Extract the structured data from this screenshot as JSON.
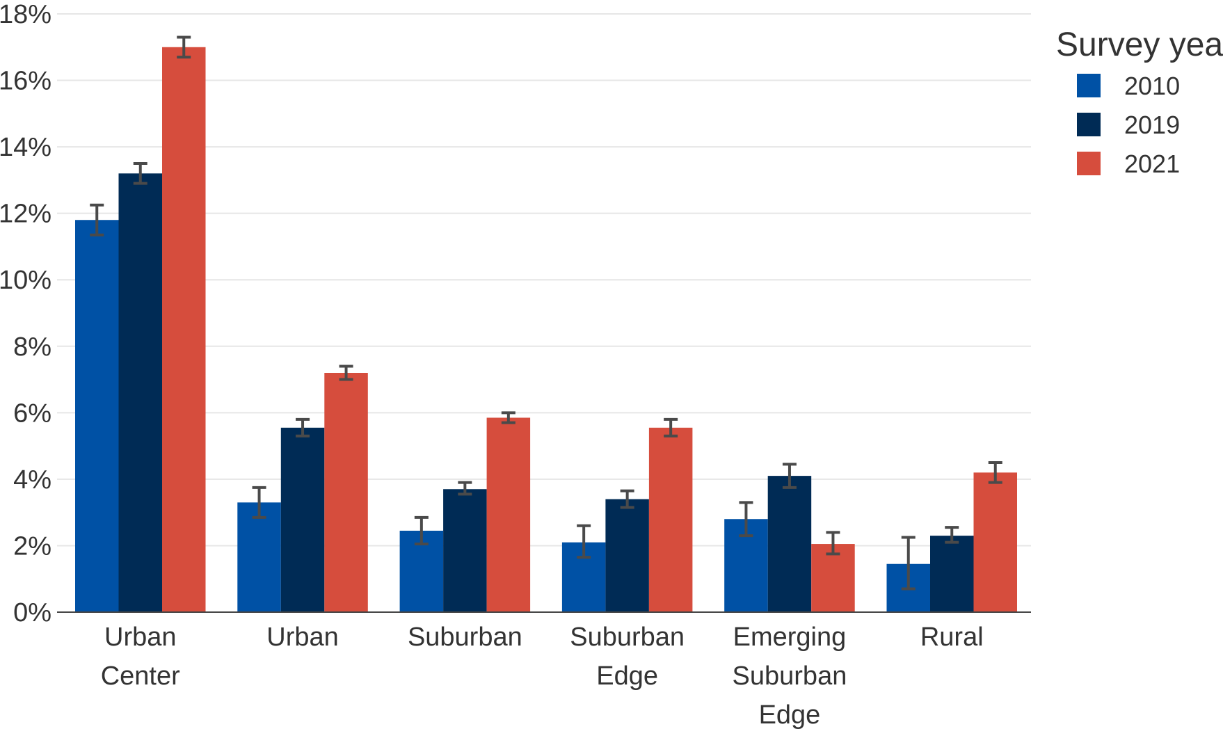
{
  "chart_data": {
    "type": "bar",
    "title": "",
    "xlabel": "",
    "ylabel": "",
    "categories": [
      [
        "Urban",
        "Center"
      ],
      [
        "Urban"
      ],
      [
        "Suburban"
      ],
      [
        "Suburban",
        "Edge"
      ],
      [
        "Emerging",
        "Suburban",
        "Edge"
      ],
      [
        "Rural"
      ]
    ],
    "series": [
      {
        "name": "2010",
        "color": "#0051a5",
        "values": [
          11.8,
          3.3,
          2.45,
          2.1,
          2.8,
          1.45
        ],
        "error": [
          [
            11.35,
            12.25
          ],
          [
            2.85,
            3.75
          ],
          [
            2.05,
            2.85
          ],
          [
            1.65,
            2.6
          ],
          [
            2.3,
            3.3
          ],
          [
            0.7,
            2.25
          ]
        ]
      },
      {
        "name": "2019",
        "color": "#002b55",
        "values": [
          13.2,
          5.55,
          3.7,
          3.4,
          4.1,
          2.3
        ],
        "error": [
          [
            12.9,
            13.5
          ],
          [
            5.3,
            5.8
          ],
          [
            3.55,
            3.9
          ],
          [
            3.15,
            3.65
          ],
          [
            3.75,
            4.45
          ],
          [
            2.1,
            2.55
          ]
        ]
      },
      {
        "name": "2021",
        "color": "#d64d3d",
        "values": [
          17.0,
          7.2,
          5.85,
          5.55,
          2.05,
          4.2
        ],
        "error": [
          [
            16.7,
            17.3
          ],
          [
            7.0,
            7.4
          ],
          [
            5.7,
            6.0
          ],
          [
            5.3,
            5.8
          ],
          [
            1.75,
            2.4
          ],
          [
            3.9,
            4.5
          ]
        ]
      }
    ],
    "y_axis": {
      "ylim": [
        0,
        18
      ],
      "ticks": [
        0,
        2,
        4,
        6,
        8,
        10,
        12,
        14,
        16,
        18
      ],
      "tick_suffix": "%"
    },
    "grid": "horizontal",
    "legend": {
      "title": "Survey year",
      "position": "right"
    },
    "error_bar_color": "#4a4a4a",
    "gridline_color": "#e6e6e6",
    "axis_color": "#444444"
  }
}
